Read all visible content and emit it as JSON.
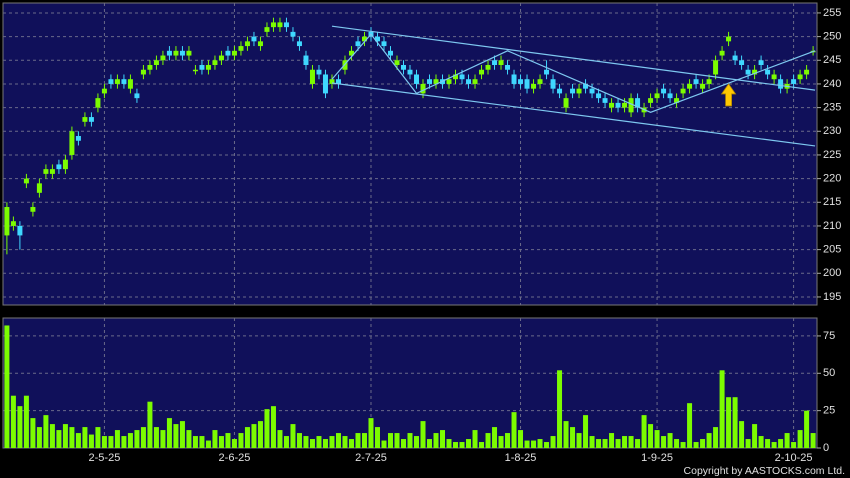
{
  "chart_data": [
    {
      "type": "candlestick",
      "open": [
        208,
        210,
        210,
        219,
        213,
        217,
        221,
        221,
        223,
        222,
        225,
        229,
        232,
        233,
        235,
        238,
        241,
        240,
        241,
        239,
        238,
        242,
        243,
        244,
        245,
        247,
        246,
        247,
        246,
        243,
        244,
        243,
        244,
        245,
        247,
        246,
        247,
        248,
        250,
        248,
        251,
        252,
        252,
        253,
        251,
        249,
        246,
        240,
        243,
        242,
        240,
        241,
        243,
        246,
        249,
        249,
        251,
        250,
        249,
        247,
        244,
        244,
        243,
        242,
        238,
        241,
        240,
        241,
        240,
        241,
        242,
        241,
        240,
        242,
        243,
        245,
        244,
        244,
        242,
        241,
        241,
        239,
        240,
        243,
        241,
        239,
        235,
        239,
        238,
        240,
        239,
        238,
        237,
        235,
        236,
        235,
        234,
        237,
        234,
        236,
        237,
        239,
        238,
        236,
        238,
        239,
        241,
        239,
        240,
        242,
        246,
        249,
        246,
        245,
        243,
        242,
        245,
        243,
        241,
        241,
        239,
        241,
        241,
        242,
        247
      ],
      "high": [
        215,
        212,
        211,
        221,
        215,
        220,
        223,
        223,
        224,
        225,
        231,
        230,
        234,
        234,
        238,
        240,
        242,
        242,
        242,
        242,
        239,
        244,
        245,
        246,
        247,
        248,
        248,
        248,
        248,
        244,
        245,
        245,
        246,
        247,
        248,
        248,
        249,
        250,
        251,
        250,
        253,
        254,
        254,
        254,
        252,
        250,
        247,
        244,
        244,
        243,
        242,
        242,
        246,
        248,
        250,
        251,
        252,
        251,
        250,
        248,
        246,
        245,
        244,
        243,
        241,
        242,
        242,
        242,
        242,
        243,
        243,
        242,
        242,
        244,
        245,
        246,
        246,
        245,
        243,
        242,
        242,
        241,
        242,
        245,
        242,
        240,
        238,
        240,
        240,
        241,
        240,
        239,
        238,
        237,
        237,
        237,
        238,
        238,
        236,
        238,
        239,
        240,
        239,
        238,
        240,
        241,
        242,
        241,
        242,
        246,
        248,
        251,
        247,
        246,
        244,
        244,
        246,
        244,
        243,
        242,
        241,
        242,
        243,
        244,
        248
      ],
      "low": [
        204,
        209,
        205,
        218,
        212,
        216,
        220,
        220,
        221,
        221,
        224,
        227,
        231,
        231,
        234,
        237,
        239,
        239,
        239,
        238,
        236,
        241,
        242,
        243,
        244,
        245,
        245,
        245,
        245,
        242,
        242,
        242,
        243,
        244,
        245,
        245,
        246,
        247,
        248,
        247,
        250,
        251,
        251,
        251,
        249,
        247,
        243,
        239,
        241,
        237,
        239,
        239,
        242,
        245,
        247,
        248,
        249,
        248,
        247,
        245,
        243,
        242,
        241,
        239,
        237,
        239,
        239,
        239,
        239,
        240,
        240,
        239,
        239,
        241,
        242,
        243,
        243,
        242,
        239,
        239,
        238,
        238,
        239,
        241,
        238,
        237,
        234,
        237,
        237,
        238,
        237,
        236,
        235,
        234,
        234,
        234,
        233,
        234,
        233,
        235,
        236,
        237,
        236,
        235,
        237,
        238,
        239,
        238,
        239,
        241,
        245,
        248,
        244,
        243,
        241,
        241,
        243,
        241,
        240,
        238,
        238,
        239,
        240,
        241,
        246
      ],
      "close": [
        214,
        211,
        208,
        220,
        214,
        219,
        222,
        222,
        222,
        224,
        230,
        228,
        233,
        232,
        237,
        239,
        240,
        241,
        240,
        241,
        237,
        243,
        244,
        245,
        246,
        246,
        247,
        246,
        247,
        243,
        243,
        244,
        245,
        246,
        246,
        247,
        248,
        249,
        249,
        249,
        252,
        253,
        253,
        252,
        250,
        248,
        244,
        243,
        242,
        238,
        241,
        240,
        245,
        247,
        248,
        250,
        250,
        249,
        248,
        246,
        245,
        243,
        242,
        240,
        240,
        240,
        241,
        240,
        241,
        242,
        241,
        240,
        241,
        243,
        244,
        244,
        245,
        243,
        240,
        240,
        239,
        240,
        241,
        242,
        239,
        238,
        237,
        238,
        239,
        239,
        238,
        237,
        236,
        236,
        235,
        236,
        237,
        235,
        235,
        237,
        238,
        238,
        237,
        237,
        239,
        240,
        240,
        240,
        241,
        245,
        247,
        250,
        245,
        244,
        242,
        243,
        244,
        242,
        242,
        239,
        240,
        240,
        242,
        243,
        247
      ],
      "up_color": "#7cfc00",
      "down_color": "#3fd8ff",
      "xlim": [
        -0.6,
        124.6
      ],
      "ylim": [
        193.3,
        257.1
      ],
      "yticks": [
        195,
        200,
        205,
        210,
        215,
        220,
        225,
        230,
        235,
        240,
        245,
        250,
        255
      ],
      "grid": true,
      "trendlines": [
        {
          "x": [
            50,
            124.3
          ],
          "y": [
            252.2,
            238.7
          ]
        },
        {
          "x": [
            50,
            124.3
          ],
          "y": [
            240.2,
            226.9
          ]
        },
        {
          "x": [
            50,
            56,
            63,
            77,
            99,
            124.3
          ],
          "y": [
            241,
            250.5,
            238,
            247,
            234,
            247
          ]
        }
      ],
      "trendline_color": "#7ec8f0",
      "arrow": {
        "x": 111,
        "y": 240,
        "color": "#ffc800"
      }
    },
    {
      "type": "bar",
      "values": [
        82,
        35,
        28,
        35,
        20,
        14,
        22,
        16,
        12,
        16,
        14,
        10,
        14,
        9,
        14,
        8,
        8,
        12,
        8,
        10,
        12,
        14,
        31,
        14,
        12,
        20,
        16,
        18,
        12,
        8,
        8,
        5,
        12,
        8,
        10,
        6,
        10,
        14,
        16,
        18,
        26,
        28,
        12,
        8,
        16,
        10,
        8,
        6,
        8,
        6,
        8,
        10,
        8,
        6,
        10,
        10,
        20,
        14,
        5,
        10,
        10,
        6,
        10,
        8,
        18,
        6,
        10,
        12,
        6,
        4,
        4,
        6,
        12,
        4,
        10,
        14,
        8,
        10,
        24,
        12,
        5,
        5,
        6,
        4,
        8,
        52,
        18,
        14,
        10,
        22,
        8,
        6,
        6,
        10,
        6,
        8,
        8,
        6,
        22,
        16,
        12,
        8,
        10,
        6,
        4,
        30,
        4,
        6,
        10,
        14,
        52,
        34,
        34,
        18,
        6,
        16,
        8,
        6,
        4,
        6,
        10,
        4,
        12,
        25,
        10
      ],
      "color": "#7cfc00",
      "xlim": [
        -0.6,
        124.6
      ],
      "ylim": [
        0,
        87
      ],
      "yticks": [
        0,
        25,
        50,
        75
      ],
      "xticks": [
        {
          "value": 15,
          "label": "2-5-25"
        },
        {
          "value": 35,
          "label": "2-6-25"
        },
        {
          "value": 56,
          "label": "2-7-25"
        },
        {
          "value": 79,
          "label": "1-8-25"
        },
        {
          "value": 100,
          "label": "1-9-25"
        },
        {
          "value": 121,
          "label": "2-10-25"
        }
      ],
      "grid": true
    }
  ],
  "footer": "Copyright by AASTOCKS.com Ltd."
}
